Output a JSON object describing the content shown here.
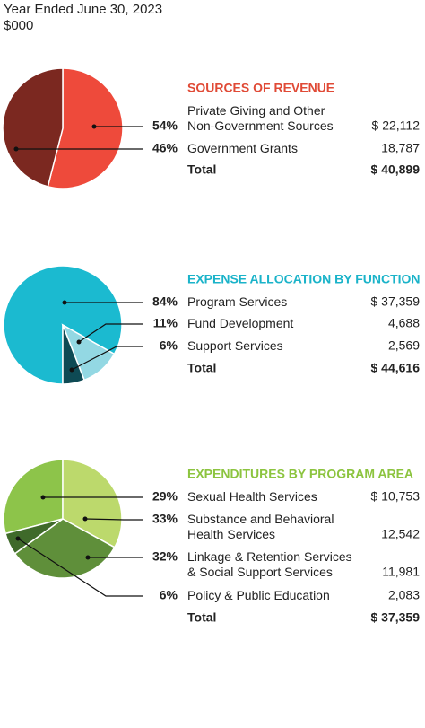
{
  "header": {
    "title": "Year Ended June 30, 2023",
    "unit": "$000"
  },
  "chart_data": [
    {
      "type": "pie",
      "title": "SOURCES OF REVENUE",
      "title_color": "#e04a36",
      "categories": [
        "Private Giving and Other\nNon-Government Sources",
        "Government Grants"
      ],
      "values": [
        54,
        46
      ],
      "value_labels": [
        "54%",
        "46%"
      ],
      "colors": [
        "#ee4a3b",
        "#7b2820"
      ],
      "amounts": [
        22112,
        18787
      ],
      "amount_labels": [
        "$ 22,112",
        "18,787"
      ],
      "total_text": "Total",
      "total": 40899,
      "total_label": "$ 40,899"
    },
    {
      "type": "pie",
      "title": "EXPENSE ALLOCATION BY FUNCTION",
      "title_color": "#1ab3c9",
      "categories": [
        "Program Services",
        "Fund Development",
        "Support Services"
      ],
      "values": [
        84,
        11,
        6
      ],
      "value_labels": [
        "84%",
        "11%",
        "6%"
      ],
      "colors": [
        "#1bbad0",
        "#93d8e3",
        "#0e4a54"
      ],
      "amounts": [
        37359,
        4688,
        2569
      ],
      "amount_labels": [
        "$ 37,359",
        "4,688",
        "2,569"
      ],
      "total_text": "Total",
      "total": 44616,
      "total_label": "$ 44,616"
    },
    {
      "type": "pie",
      "title": "EXPENDITURES BY PROGRAM AREA",
      "title_color": "#8cc43f",
      "categories": [
        "Sexual Health Services",
        "Substance and Behavioral\nHealth Services",
        "Linkage & Retention Services\n& Social Support Services",
        "Policy & Public Education"
      ],
      "values": [
        29,
        33,
        32,
        6
      ],
      "value_labels": [
        "29%",
        "33%",
        "32%",
        "6%"
      ],
      "colors": [
        "#8dc44a",
        "#bcd96c",
        "#5f8f3a",
        "#3f6a2a"
      ],
      "amounts": [
        10753,
        12542,
        11981,
        2083
      ],
      "amount_labels": [
        "$ 10,753",
        "12,542",
        "11,981",
        "2,083"
      ],
      "total_text": "Total",
      "total": 37359,
      "total_label": "$ 37,359"
    }
  ]
}
